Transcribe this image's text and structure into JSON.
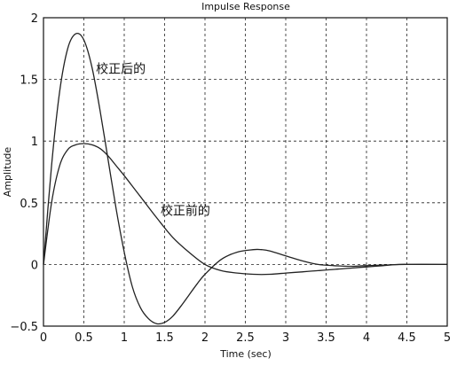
{
  "chart_data": {
    "type": "line",
    "title": "Impulse Response",
    "xlabel": "Time (sec)",
    "ylabel": "Amplitude",
    "xlim": [
      0,
      5
    ],
    "ylim": [
      -0.5,
      2
    ],
    "xticks": [
      0,
      0.5,
      1,
      1.5,
      2,
      2.5,
      3,
      3.5,
      4,
      4.5,
      5
    ],
    "xtick_labels": [
      "0",
      "0.5",
      "1",
      "1.5",
      "2",
      "2.5",
      "3",
      "3.5",
      "4",
      "4.5",
      "5"
    ],
    "yticks": [
      -0.5,
      0,
      0.5,
      1,
      1.5,
      2
    ],
    "ytick_labels": [
      "−0.5",
      "0",
      "0.5",
      "1",
      "1.5",
      "2"
    ],
    "grid": true,
    "series": [
      {
        "name": "校正后的",
        "x": [
          0,
          0.1,
          0.2,
          0.3,
          0.4,
          0.5,
          0.6,
          0.7,
          0.8,
          0.9,
          1.0,
          1.1,
          1.2,
          1.3,
          1.4,
          1.5,
          1.6,
          1.7,
          1.8,
          1.9,
          2.0,
          2.2,
          2.4,
          2.6,
          2.7,
          2.8,
          3.0,
          3.2,
          3.4,
          3.6,
          3.8,
          4.0,
          4.5,
          5.0
        ],
        "y": [
          0,
          0.8,
          1.4,
          1.75,
          1.87,
          1.82,
          1.6,
          1.25,
          0.85,
          0.45,
          0.1,
          -0.18,
          -0.35,
          -0.44,
          -0.48,
          -0.47,
          -0.42,
          -0.34,
          -0.25,
          -0.16,
          -0.08,
          0.04,
          0.1,
          0.12,
          0.12,
          0.11,
          0.07,
          0.03,
          0.0,
          -0.01,
          -0.015,
          -0.01,
          0.0,
          0.0
        ]
      },
      {
        "name": "校正前的",
        "x": [
          0,
          0.1,
          0.2,
          0.3,
          0.4,
          0.5,
          0.6,
          0.7,
          0.8,
          0.9,
          1.0,
          1.2,
          1.4,
          1.6,
          1.8,
          2.0,
          2.2,
          2.4,
          2.6,
          2.8,
          3.0,
          3.2,
          3.4,
          3.6,
          3.8,
          4.0,
          4.2,
          4.4,
          4.6,
          4.8,
          5.0
        ],
        "y": [
          0,
          0.5,
          0.8,
          0.93,
          0.97,
          0.98,
          0.97,
          0.94,
          0.88,
          0.8,
          0.72,
          0.55,
          0.38,
          0.22,
          0.1,
          0.0,
          -0.05,
          -0.07,
          -0.08,
          -0.08,
          -0.07,
          -0.06,
          -0.05,
          -0.04,
          -0.03,
          -0.02,
          -0.01,
          0.0,
          0.0,
          0.0,
          0.0
        ]
      }
    ],
    "annotations": [
      {
        "text": "校正后的",
        "x": 0.65,
        "y": 1.55
      },
      {
        "text": "校正前的",
        "x": 1.45,
        "y": 0.4
      }
    ]
  }
}
